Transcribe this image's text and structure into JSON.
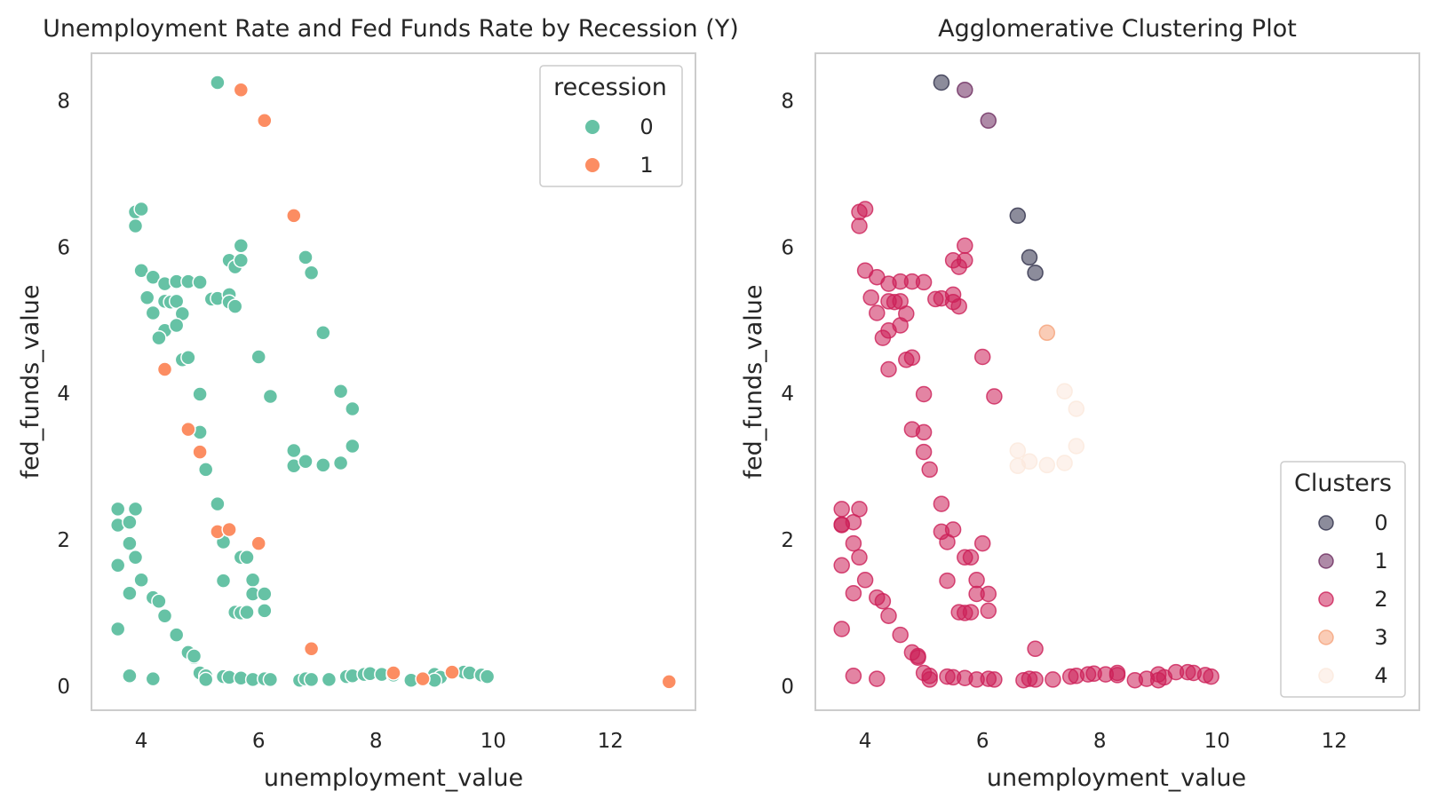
{
  "chart_data": [
    {
      "type": "scatter",
      "title": "Unemployment Rate and Fed Funds Rate by Recession (Y)",
      "xlabel": "unemployment_value",
      "ylabel": "fed_funds_value",
      "xlim": [
        3.15,
        13.45
      ],
      "ylim": [
        -0.33,
        8.65
      ],
      "xticks": [
        "4",
        "6",
        "8",
        "10",
        "12"
      ],
      "yticks": [
        "0",
        "2",
        "4",
        "6",
        "8"
      ],
      "grid": false,
      "legend": {
        "title": "recession",
        "placement": "top-right"
      },
      "series": [
        {
          "name": "0",
          "color": "#66c2a5",
          "points": [
            [
              5.3,
              8.25
            ],
            [
              3.9,
              6.48
            ],
            [
              4.0,
              6.52
            ],
            [
              3.9,
              6.29
            ],
            [
              4.0,
              5.68
            ],
            [
              4.2,
              5.59
            ],
            [
              4.4,
              5.5
            ],
            [
              4.6,
              5.53
            ],
            [
              4.8,
              5.53
            ],
            [
              5.0,
              5.52
            ],
            [
              4.1,
              5.31
            ],
            [
              4.4,
              5.26
            ],
            [
              4.5,
              5.25
            ],
            [
              4.6,
              5.26
            ],
            [
              5.2,
              5.29
            ],
            [
              5.3,
              5.3
            ],
            [
              5.5,
              5.35
            ],
            [
              5.5,
              5.25
            ],
            [
              5.6,
              5.19
            ],
            [
              4.2,
              5.1
            ],
            [
              4.7,
              5.09
            ],
            [
              4.4,
              4.86
            ],
            [
              4.6,
              4.93
            ],
            [
              4.3,
              4.76
            ],
            [
              4.7,
              4.46
            ],
            [
              4.8,
              4.49
            ],
            [
              5.5,
              5.82
            ],
            [
              5.6,
              5.73
            ],
            [
              5.7,
              5.82
            ],
            [
              5.7,
              6.02
            ],
            [
              6.8,
              5.86
            ],
            [
              6.9,
              5.65
            ],
            [
              7.1,
              4.83
            ],
            [
              6.0,
              4.5
            ],
            [
              5.0,
              3.99
            ],
            [
              6.2,
              3.96
            ],
            [
              7.4,
              4.03
            ],
            [
              7.6,
              3.79
            ],
            [
              5.0,
              3.47
            ],
            [
              5.1,
              2.96
            ],
            [
              7.6,
              3.28
            ],
            [
              6.6,
              3.22
            ],
            [
              6.6,
              3.01
            ],
            [
              6.8,
              3.07
            ],
            [
              7.1,
              3.02
            ],
            [
              7.4,
              3.05
            ],
            [
              3.6,
              2.42
            ],
            [
              3.9,
              2.42
            ],
            [
              3.6,
              2.2
            ],
            [
              3.8,
              2.24
            ],
            [
              5.3,
              2.49
            ],
            [
              3.8,
              1.95
            ],
            [
              3.9,
              1.76
            ],
            [
              5.4,
              1.97
            ],
            [
              5.7,
              1.76
            ],
            [
              5.8,
              1.76
            ],
            [
              3.6,
              1.65
            ],
            [
              3.8,
              1.27
            ],
            [
              4.0,
              1.45
            ],
            [
              4.2,
              1.21
            ],
            [
              4.3,
              1.16
            ],
            [
              4.4,
              0.96
            ],
            [
              5.4,
              1.44
            ],
            [
              5.9,
              1.45
            ],
            [
              5.9,
              1.26
            ],
            [
              6.1,
              1.26
            ],
            [
              5.6,
              1.01
            ],
            [
              5.7,
              1.0
            ],
            [
              5.8,
              1.01
            ],
            [
              6.1,
              1.03
            ],
            [
              3.6,
              0.78
            ],
            [
              4.6,
              0.7
            ],
            [
              4.8,
              0.46
            ],
            [
              4.9,
              0.39
            ],
            [
              4.9,
              0.41
            ],
            [
              5.0,
              0.18
            ],
            [
              5.1,
              0.14
            ],
            [
              5.1,
              0.09
            ],
            [
              5.4,
              0.13
            ],
            [
              5.5,
              0.12
            ],
            [
              5.7,
              0.11
            ],
            [
              5.9,
              0.09
            ],
            [
              6.1,
              0.1
            ],
            [
              6.2,
              0.09
            ],
            [
              3.8,
              0.14
            ],
            [
              4.2,
              0.1
            ],
            [
              6.7,
              0.08
            ],
            [
              6.8,
              0.1
            ],
            [
              6.9,
              0.09
            ],
            [
              7.2,
              0.09
            ],
            [
              7.5,
              0.13
            ],
            [
              7.6,
              0.14
            ],
            [
              7.8,
              0.16
            ],
            [
              7.9,
              0.17
            ],
            [
              8.1,
              0.16
            ],
            [
              8.3,
              0.15
            ],
            [
              8.6,
              0.08
            ],
            [
              9.0,
              0.16
            ],
            [
              9.1,
              0.12
            ],
            [
              9.5,
              0.19
            ],
            [
              9.6,
              0.18
            ],
            [
              9.8,
              0.15
            ],
            [
              9.9,
              0.13
            ],
            [
              9.0,
              0.08
            ]
          ]
        },
        {
          "name": "1",
          "color": "#fc8d62",
          "points": [
            [
              5.7,
              8.15
            ],
            [
              6.1,
              7.73
            ],
            [
              6.6,
              6.43
            ],
            [
              4.4,
              4.33
            ],
            [
              4.8,
              3.51
            ],
            [
              5.0,
              3.2
            ],
            [
              5.3,
              2.11
            ],
            [
              5.5,
              2.14
            ],
            [
              6.0,
              1.95
            ],
            [
              6.9,
              0.51
            ],
            [
              8.3,
              0.18
            ],
            [
              8.8,
              0.1
            ],
            [
              9.3,
              0.19
            ],
            [
              13.0,
              0.06
            ]
          ]
        }
      ]
    },
    {
      "type": "scatter",
      "title": "Agglomerative Clustering Plot",
      "xlabel": "unemployment_value",
      "ylabel": "fed_funds_value",
      "xlim": [
        3.15,
        13.45
      ],
      "ylim": [
        -0.33,
        8.65
      ],
      "xticks": [
        "4",
        "6",
        "8",
        "10",
        "12"
      ],
      "yticks": [
        "0",
        "2",
        "4",
        "6",
        "8"
      ],
      "grid": false,
      "legend": {
        "title": "Clusters",
        "placement": "bottom-right"
      },
      "series": [
        {
          "name": "0",
          "color": "#2e2e48",
          "points": [
            [
              5.3,
              8.25
            ],
            [
              6.6,
              6.43
            ],
            [
              6.8,
              5.86
            ],
            [
              6.9,
              5.65
            ]
          ]
        },
        {
          "name": "1",
          "color": "#6b2a5e",
          "points": [
            [
              5.7,
              8.15
            ],
            [
              6.1,
              7.73
            ]
          ]
        },
        {
          "name": "2",
          "color": "#cc1f57",
          "points": [
            [
              3.9,
              6.48
            ],
            [
              4.0,
              6.52
            ],
            [
              3.9,
              6.29
            ],
            [
              4.0,
              5.68
            ],
            [
              4.2,
              5.59
            ],
            [
              4.4,
              5.5
            ],
            [
              4.6,
              5.53
            ],
            [
              4.8,
              5.53
            ],
            [
              5.0,
              5.52
            ],
            [
              4.1,
              5.31
            ],
            [
              4.4,
              5.26
            ],
            [
              4.5,
              5.25
            ],
            [
              4.6,
              5.26
            ],
            [
              5.2,
              5.29
            ],
            [
              5.3,
              5.3
            ],
            [
              5.5,
              5.35
            ],
            [
              5.5,
              5.25
            ],
            [
              5.6,
              5.19
            ],
            [
              4.2,
              5.1
            ],
            [
              4.7,
              5.09
            ],
            [
              4.4,
              4.86
            ],
            [
              4.6,
              4.93
            ],
            [
              4.3,
              4.76
            ],
            [
              4.7,
              4.46
            ],
            [
              4.8,
              4.49
            ],
            [
              5.5,
              5.82
            ],
            [
              5.6,
              5.73
            ],
            [
              5.7,
              5.82
            ],
            [
              5.7,
              6.02
            ],
            [
              6.0,
              4.5
            ],
            [
              5.0,
              3.99
            ],
            [
              6.2,
              3.96
            ],
            [
              4.4,
              4.33
            ],
            [
              4.8,
              3.51
            ],
            [
              5.0,
              3.47
            ],
            [
              5.0,
              3.2
            ],
            [
              5.1,
              2.96
            ],
            [
              3.6,
              2.42
            ],
            [
              3.9,
              2.42
            ],
            [
              3.6,
              2.2
            ],
            [
              3.6,
              2.21
            ],
            [
              3.8,
              2.24
            ],
            [
              5.3,
              2.49
            ],
            [
              5.3,
              2.11
            ],
            [
              5.5,
              2.14
            ],
            [
              6.0,
              1.95
            ],
            [
              3.8,
              1.95
            ],
            [
              3.9,
              1.76
            ],
            [
              5.4,
              1.97
            ],
            [
              5.7,
              1.76
            ],
            [
              5.8,
              1.76
            ],
            [
              3.6,
              1.65
            ],
            [
              3.8,
              1.27
            ],
            [
              4.0,
              1.45
            ],
            [
              4.2,
              1.21
            ],
            [
              4.3,
              1.16
            ],
            [
              4.4,
              0.96
            ],
            [
              5.4,
              1.44
            ],
            [
              5.9,
              1.45
            ],
            [
              5.9,
              1.26
            ],
            [
              6.1,
              1.26
            ],
            [
              5.6,
              1.01
            ],
            [
              5.7,
              1.0
            ],
            [
              5.8,
              1.01
            ],
            [
              6.1,
              1.03
            ],
            [
              3.6,
              0.78
            ],
            [
              4.6,
              0.7
            ],
            [
              4.8,
              0.46
            ],
            [
              4.9,
              0.39
            ],
            [
              4.9,
              0.41
            ],
            [
              6.9,
              0.51
            ],
            [
              5.0,
              0.18
            ],
            [
              5.1,
              0.14
            ],
            [
              5.1,
              0.09
            ],
            [
              5.4,
              0.13
            ],
            [
              5.5,
              0.12
            ],
            [
              5.7,
              0.11
            ],
            [
              5.9,
              0.09
            ],
            [
              6.1,
              0.1
            ],
            [
              6.2,
              0.09
            ],
            [
              3.8,
              0.14
            ],
            [
              4.2,
              0.1
            ],
            [
              6.7,
              0.08
            ],
            [
              6.8,
              0.1
            ],
            [
              6.9,
              0.09
            ],
            [
              7.2,
              0.09
            ],
            [
              7.5,
              0.13
            ],
            [
              7.6,
              0.14
            ],
            [
              7.8,
              0.16
            ],
            [
              7.9,
              0.17
            ],
            [
              8.1,
              0.16
            ],
            [
              8.3,
              0.15
            ],
            [
              8.3,
              0.18
            ],
            [
              8.6,
              0.08
            ],
            [
              8.8,
              0.1
            ],
            [
              9.0,
              0.16
            ],
            [
              9.1,
              0.12
            ],
            [
              9.0,
              0.08
            ],
            [
              9.3,
              0.19
            ],
            [
              9.5,
              0.19
            ],
            [
              9.6,
              0.18
            ],
            [
              9.8,
              0.15
            ],
            [
              9.9,
              0.13
            ]
          ]
        },
        {
          "name": "3",
          "color": "#f5a27a",
          "points": [
            [
              7.1,
              4.83
            ]
          ]
        },
        {
          "name": "4",
          "color": "#fbe8dc",
          "points": [
            [
              7.4,
              4.03
            ],
            [
              7.6,
              3.79
            ],
            [
              7.6,
              3.28
            ],
            [
              6.6,
              3.22
            ],
            [
              6.6,
              3.01
            ],
            [
              6.8,
              3.07
            ],
            [
              7.1,
              3.02
            ],
            [
              7.4,
              3.05
            ],
            [
              13.0,
              0.06
            ]
          ]
        }
      ]
    }
  ]
}
